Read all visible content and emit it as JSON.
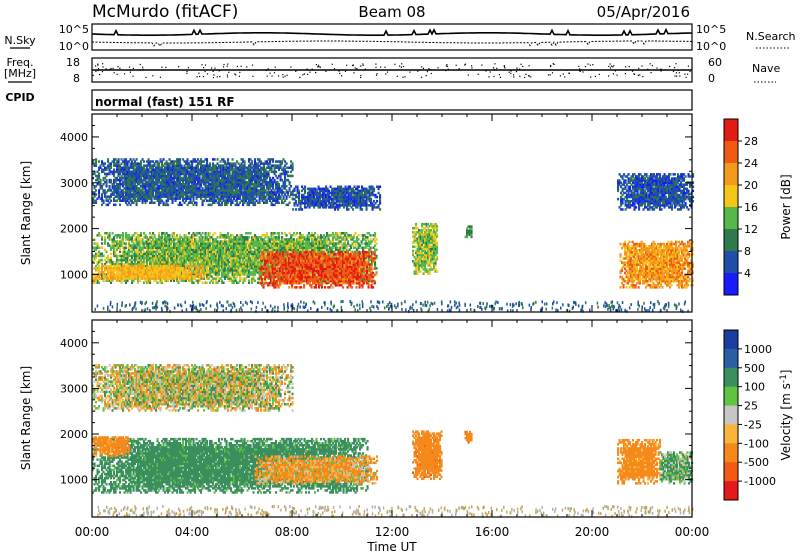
{
  "header": {
    "station": "McMurdo (fitACF)",
    "beam": "Beam 08",
    "date": "05/Apr/2016"
  },
  "noise_panel": {
    "left_label": "N.Sky",
    "right_label": "N.Search",
    "left_ticks": [
      "10^5",
      "10^0"
    ],
    "right_ticks": [
      "10^5",
      "10^0"
    ]
  },
  "freq_panel": {
    "left_label_1": "Freq.",
    "left_label_2": "[MHz]",
    "right_label": "Nave",
    "left_ticks": [
      "18",
      "8"
    ],
    "right_ticks": [
      "60",
      "0"
    ]
  },
  "cpid_panel": {
    "label": "CPID",
    "text": "normal (fast) 151 RF"
  },
  "axes": {
    "ylabel": "Slant Range [km]",
    "xlabel": "Time UT",
    "yticks": [
      "4000",
      "3000",
      "2000",
      "1000"
    ],
    "xticks": [
      "00:00",
      "04:00",
      "08:00",
      "12:00",
      "16:00",
      "20:00",
      "00:00"
    ]
  },
  "colors": {
    "power": [
      "#1a1aff",
      "#1f4fa8",
      "#2f7a4a",
      "#55b84a",
      "#f5c518",
      "#f39a1c",
      "#f05a14",
      "#e21b14"
    ],
    "velocity": [
      "#e31a1c",
      "#f35a17",
      "#f58a1a",
      "#f7b53c",
      "#c6c6c6",
      "#5ec442",
      "#3b8e5e",
      "#2a5fa3",
      "#1b3ea0"
    ],
    "ground": "#9a9a9a"
  },
  "chart_data": [
    {
      "type": "heatmap",
      "name": "power",
      "ylabel": "Slant Range [km]",
      "xlabel": "",
      "xlim": [
        0,
        24
      ],
      "ylim": [
        180,
        4500
      ],
      "colorbar": {
        "label": "Power [dB]",
        "ticks": [
          "28",
          "24",
          "20",
          "16",
          "12",
          "8",
          "4"
        ],
        "range": [
          0,
          32
        ]
      },
      "regions": [
        {
          "t0": 0.0,
          "t1": 11.4,
          "r0": 800,
          "r1": 1900,
          "v": 14
        },
        {
          "t0": 6.7,
          "t1": 11.3,
          "r0": 700,
          "r1": 1500,
          "v": 27
        },
        {
          "t0": 0.0,
          "t1": 4.5,
          "r0": 850,
          "r1": 1200,
          "v": 20
        },
        {
          "t0": 0.0,
          "t1": 8.0,
          "r0": 2500,
          "r1": 3500,
          "v": 7
        },
        {
          "t0": 8.0,
          "t1": 11.5,
          "r0": 2400,
          "r1": 2900,
          "v": 6
        },
        {
          "t0": 12.8,
          "t1": 13.8,
          "r0": 1000,
          "r1": 2100,
          "v": 15
        },
        {
          "t0": 14.9,
          "t1": 15.2,
          "r0": 1800,
          "r1": 2050,
          "v": 12
        },
        {
          "t0": 21.1,
          "t1": 24.0,
          "r0": 700,
          "r1": 1700,
          "v": 22
        },
        {
          "t0": 21.0,
          "t1": 24.0,
          "r0": 2400,
          "r1": 3200,
          "v": 6
        }
      ]
    },
    {
      "type": "heatmap",
      "name": "velocity",
      "ylabel": "Slant Range [km]",
      "xlabel": "Time UT",
      "xlim": [
        0,
        24
      ],
      "ylim": [
        180,
        4500
      ],
      "colorbar": {
        "label": "Velocity [m s^-1]",
        "ticks": [
          "1000",
          "500",
          "100",
          "25",
          "-25",
          "-100",
          "-500",
          "-1000"
        ],
        "range": [
          -1200,
          1200
        ]
      },
      "regions": [
        {
          "t0": 0.0,
          "t1": 11.0,
          "r0": 700,
          "r1": 1900,
          "v": 150
        },
        {
          "t0": 0.0,
          "t1": 1.5,
          "r0": 1500,
          "r1": 1950,
          "v": -150
        },
        {
          "t0": 6.5,
          "t1": 11.4,
          "r0": 900,
          "r1": 1500,
          "v": -80
        },
        {
          "t0": 0.0,
          "t1": 8.0,
          "r0": 2500,
          "r1": 3500,
          "v": 0
        },
        {
          "t0": 12.8,
          "t1": 14.0,
          "r0": 1000,
          "r1": 2050,
          "v": -200
        },
        {
          "t0": 14.9,
          "t1": 15.2,
          "r0": 1800,
          "r1": 2050,
          "v": -200
        },
        {
          "t0": 21.0,
          "t1": 22.7,
          "r0": 900,
          "r1": 1850,
          "v": -150
        },
        {
          "t0": 22.7,
          "t1": 24.0,
          "r0": 900,
          "r1": 1600,
          "v": 80
        }
      ]
    }
  ]
}
